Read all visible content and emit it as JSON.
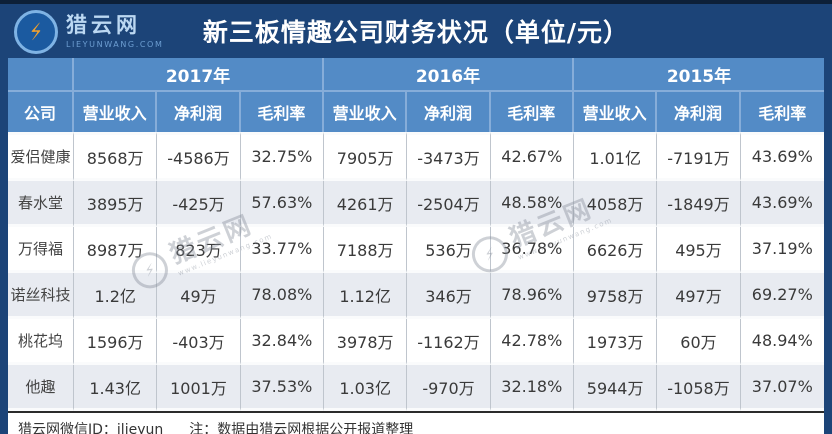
{
  "colors": {
    "navy": "#1c4478",
    "headerBlue": "#538bc6",
    "rowAlt": "#e8ebf1",
    "accent": "#f2a12d"
  },
  "brand": {
    "logo_text": "猎云网",
    "logo_domain": "LIEYUNWANG.COM"
  },
  "header": {
    "title": "新三板情趣公司财务状况（单位/元）"
  },
  "chart_data": {
    "type": "table",
    "title": "新三板情趣公司财务状况（单位/元）",
    "corner_label": "",
    "company_header": "公司",
    "year_groups": [
      "2017年",
      "2016年",
      "2015年"
    ],
    "metric_headers": [
      "营业收入",
      "净利润",
      "毛利率"
    ],
    "rows": [
      {
        "company": "爱侣健康",
        "values": [
          "8568万",
          "-4586万",
          "32.75%",
          "7905万",
          "-3473万",
          "42.67%",
          "1.01亿",
          "-7191万",
          "43.69%"
        ]
      },
      {
        "company": "春水堂",
        "values": [
          "3895万",
          "-425万",
          "57.63%",
          "4261万",
          "-2504万",
          "48.58%",
          "4058万",
          "-1849万",
          "43.69%"
        ]
      },
      {
        "company": "万得福",
        "values": [
          "8987万",
          "823万",
          "33.77%",
          "7188万",
          "536万",
          "36.78%",
          "6626万",
          "495万",
          "37.19%"
        ]
      },
      {
        "company": "诺丝科技",
        "values": [
          "1.2亿",
          "49万",
          "78.08%",
          "1.12亿",
          "346万",
          "78.96%",
          "9758万",
          "497万",
          "69.27%"
        ]
      },
      {
        "company": "桃花坞",
        "values": [
          "1596万",
          "-403万",
          "32.84%",
          "3978万",
          "-1162万",
          "42.78%",
          "1973万",
          "60万",
          "48.94%"
        ]
      },
      {
        "company": "他趣",
        "values": [
          "1.43亿",
          "1001万",
          "37.53%",
          "1.03亿",
          "-970万",
          "32.18%",
          "5944万",
          "-1058万",
          "37.07%"
        ]
      }
    ]
  },
  "footer": {
    "wechat": "猎云网微信ID：ilieyun",
    "note": "注：数据由猎云网根据公开报道整理"
  },
  "watermark": {
    "text": "猎云网",
    "sub": "www.lieyunwang.com"
  }
}
